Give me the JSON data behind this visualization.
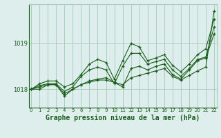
{
  "bg_color": "#ddeeed",
  "grid_color": "#aaccbb",
  "line_color": "#1a5c1a",
  "title": "Graphe pression niveau de la mer (hPa)",
  "yticks": [
    1018,
    1019
  ],
  "xlim": [
    -0.3,
    22.3
  ],
  "ylim": [
    1017.6,
    1019.85
  ],
  "xticks": [
    0,
    1,
    2,
    3,
    4,
    5,
    6,
    7,
    8,
    9,
    10,
    11,
    12,
    13,
    14,
    15,
    16,
    17,
    18,
    19,
    20,
    21,
    22
  ],
  "series": [
    [
      1018.0,
      1018.0,
      1018.1,
      1018.1,
      1017.85,
      1018.0,
      1018.1,
      1018.15,
      1018.2,
      1018.2,
      1018.15,
      1018.1,
      1018.25,
      1018.3,
      1018.35,
      1018.4,
      1018.45,
      1018.28,
      1018.2,
      1018.3,
      1018.4,
      1018.48,
      1019.7
    ],
    [
      1018.0,
      1018.05,
      1018.1,
      1018.1,
      1017.9,
      1018.0,
      1018.1,
      1018.18,
      1018.22,
      1018.25,
      1018.15,
      1018.05,
      1018.45,
      1018.5,
      1018.42,
      1018.5,
      1018.55,
      1018.32,
      1018.22,
      1018.42,
      1018.62,
      1018.68,
      1019.2
    ],
    [
      1018.0,
      1018.08,
      1018.12,
      1018.12,
      1017.95,
      1018.05,
      1018.28,
      1018.42,
      1018.48,
      1018.42,
      1018.12,
      1018.5,
      1018.78,
      1018.78,
      1018.55,
      1018.6,
      1018.65,
      1018.42,
      1018.28,
      1018.45,
      1018.65,
      1018.7,
      1019.35
    ],
    [
      1018.0,
      1018.12,
      1018.18,
      1018.18,
      1018.05,
      1018.12,
      1018.32,
      1018.55,
      1018.65,
      1018.58,
      1018.22,
      1018.62,
      1019.0,
      1018.92,
      1018.62,
      1018.68,
      1018.75,
      1018.52,
      1018.38,
      1018.55,
      1018.75,
      1018.88,
      1019.52
    ]
  ]
}
